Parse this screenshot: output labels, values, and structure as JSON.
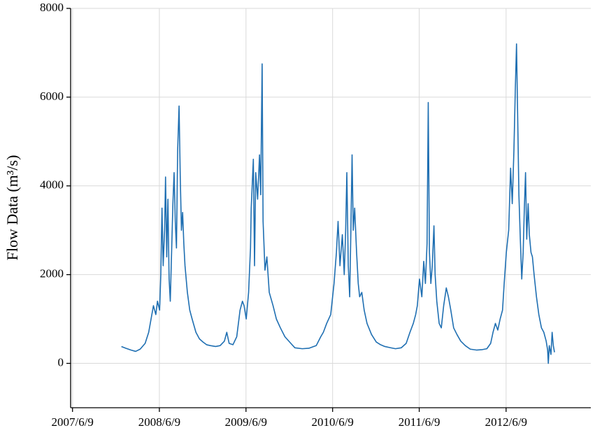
{
  "chart_data": {
    "type": "line",
    "ylabel": "Flow Data (m³/s)",
    "xlim": [
      "2007/6/1",
      "2013/6/1"
    ],
    "xticks": [
      "2007/6/9",
      "2008/6/9",
      "2009/6/9",
      "2010/6/9",
      "2011/6/9",
      "2012/6/9"
    ],
    "ylim": [
      -1000,
      8000
    ],
    "yticks": [
      0,
      2000,
      4000,
      6000,
      8000
    ],
    "grid": true,
    "series": [
      {
        "color": "#1f6fb2",
        "x": [
          "2008/1/1",
          "2008/1/20",
          "2008/2/10",
          "2008/3/1",
          "2008/3/20",
          "2008/4/10",
          "2008/4/25",
          "2008/5/5",
          "2008/5/15",
          "2008/5/25",
          "2008/6/1",
          "2008/6/10",
          "2008/6/15",
          "2008/6/20",
          "2008/6/25",
          "2008/7/1",
          "2008/7/5",
          "2008/7/10",
          "2008/7/15",
          "2008/7/20",
          "2008/7/25",
          "2008/8/1",
          "2008/8/5",
          "2008/8/10",
          "2008/8/15",
          "2008/8/20",
          "2008/8/25",
          "2008/8/31",
          "2008/9/5",
          "2008/9/10",
          "2008/9/15",
          "2008/9/20",
          "2008/9/25",
          "2008/10/5",
          "2008/10/15",
          "2008/10/25",
          "2008/11/10",
          "2008/11/25",
          "2008/12/10",
          "2008/12/25",
          "2009/1/10",
          "2009/2/1",
          "2009/2/20",
          "2009/3/10",
          "2009/3/20",
          "2009/3/30",
          "2009/4/15",
          "2009/5/1",
          "2009/5/15",
          "2009/5/25",
          "2009/6/1",
          "2009/6/10",
          "2009/6/20",
          "2009/6/28",
          "2009/7/1",
          "2009/7/10",
          "2009/7/15",
          "2009/7/20",
          "2009/7/28",
          "2009/8/5",
          "2009/8/10",
          "2009/8/16",
          "2009/8/20",
          "2009/8/28",
          "2009/9/5",
          "2009/9/15",
          "2009/10/1",
          "2009/10/15",
          "2009/11/1",
          "2009/11/20",
          "2009/12/15",
          "2010/1/1",
          "2010/2/1",
          "2010/3/1",
          "2010/4/1",
          "2010/4/20",
          "2010/5/1",
          "2010/5/15",
          "2010/6/1",
          "2010/6/15",
          "2010/6/25",
          "2010/7/2",
          "2010/7/10",
          "2010/7/20",
          "2010/7/28",
          "2010/8/3",
          "2010/8/8",
          "2010/8/14",
          "2010/8/20",
          "2010/8/25",
          "2010/8/30",
          "2010/9/4",
          "2010/9/10",
          "2010/9/18",
          "2010/9/25",
          "2010/10/1",
          "2010/10/10",
          "2010/10/20",
          "2010/11/1",
          "2010/11/20",
          "2010/12/10",
          "2010/12/28",
          "2011/1/15",
          "2011/2/10",
          "2011/3/1",
          "2011/3/25",
          "2011/4/15",
          "2011/5/1",
          "2011/5/15",
          "2011/5/25",
          "2011/6/1",
          "2011/6/10",
          "2011/6/20",
          "2011/6/28",
          "2011/7/5",
          "2011/7/12",
          "2011/7/17",
          "2011/7/22",
          "2011/7/28",
          "2011/8/3",
          "2011/8/10",
          "2011/8/15",
          "2011/8/22",
          "2011/9/1",
          "2011/9/10",
          "2011/9/20",
          "2011/10/1",
          "2011/10/10",
          "2011/10/20",
          "2011/11/1",
          "2011/11/15",
          "2011/12/1",
          "2011/12/20",
          "2012/1/10",
          "2012/2/5",
          "2012/3/1",
          "2012/3/20",
          "2012/4/5",
          "2012/4/15",
          "2012/4/25",
          "2012/5/5",
          "2012/5/15",
          "2012/5/25",
          "2012/6/1",
          "2012/6/10",
          "2012/6/20",
          "2012/6/28",
          "2012/7/5",
          "2012/7/12",
          "2012/7/18",
          "2012/7/23",
          "2012/7/28",
          "2012/8/2",
          "2012/8/8",
          "2012/8/14",
          "2012/8/20",
          "2012/8/25",
          "2012/8/30",
          "2012/9/4",
          "2012/9/10",
          "2012/9/15",
          "2012/9/22",
          "2012/9/28",
          "2012/10/5",
          "2012/10/15",
          "2012/10/25",
          "2012/11/5",
          "2012/11/15",
          "2012/11/25",
          "2012/12/1",
          "2012/12/4",
          "2012/12/8",
          "2012/12/15",
          "2012/12/20",
          "2012/12/25",
          "2012/12/30"
        ],
        "values": [
          380,
          340,
          300,
          270,
          320,
          450,
          700,
          1000,
          1300,
          1100,
          1400,
          1200,
          2000,
          3500,
          2200,
          3000,
          4200,
          2400,
          3700,
          1900,
          1400,
          2800,
          3600,
          4300,
          3200,
          2600,
          4800,
          5800,
          4200,
          3000,
          3400,
          2700,
          2200,
          1600,
          1200,
          1000,
          700,
          550,
          480,
          420,
          400,
          380,
          400,
          500,
          700,
          450,
          420,
          600,
          1200,
          1400,
          1300,
          1000,
          1600,
          2600,
          3500,
          4600,
          2200,
          4300,
          3700,
          4700,
          3800,
          6750,
          3200,
          2100,
          2400,
          1600,
          1300,
          1000,
          800,
          600,
          450,
          350,
          330,
          340,
          400,
          600,
          700,
          900,
          1100,
          1800,
          2500,
          3200,
          2200,
          2900,
          2000,
          3000,
          4300,
          2200,
          1500,
          3000,
          4700,
          3000,
          3500,
          2500,
          1800,
          1500,
          1600,
          1200,
          900,
          650,
          480,
          420,
          380,
          350,
          330,
          350,
          450,
          700,
          900,
          1100,
          1300,
          1900,
          1500,
          2300,
          1800,
          2700,
          5880,
          2500,
          1800,
          2200,
          3100,
          2000,
          1400,
          900,
          800,
          1300,
          1700,
          1500,
          1200,
          800,
          650,
          500,
          400,
          320,
          300,
          310,
          330,
          450,
          700,
          900,
          750,
          1000,
          1200,
          1800,
          2500,
          3000,
          4400,
          3600,
          4800,
          6200,
          7200,
          5500,
          3800,
          2800,
          1900,
          2500,
          3500,
          4300,
          2800,
          3600,
          2900,
          2500,
          2400,
          2000,
          1500,
          1100,
          800,
          700,
          500,
          300,
          0,
          400,
          200,
          700,
          400,
          250
        ]
      }
    ]
  }
}
